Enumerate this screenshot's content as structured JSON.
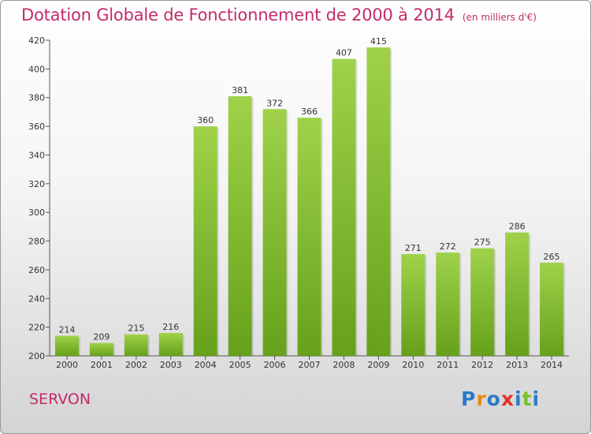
{
  "page": {
    "title": "Dotation Globale de Fonctionnement de 2000 à 2014",
    "subtitle": "(en milliers d'€)",
    "town": "SERVON",
    "logo": [
      "P",
      "r",
      "o",
      "x",
      "i",
      "t",
      "i"
    ],
    "logo_colors": [
      "#2b7bc6",
      "#e98a15",
      "#2b7bc6",
      "#e2312b",
      "#2b7bc6",
      "#7cbf2b",
      "#2b7bc6"
    ]
  },
  "chart_data": {
    "type": "bar",
    "title": "Dotation Globale de Fonctionnement de 2000 à 2014",
    "subtitle": "(en milliers d'€)",
    "xlabel": "",
    "ylabel": "",
    "categories": [
      "2000",
      "2001",
      "2002",
      "2003",
      "2004",
      "2005",
      "2006",
      "2007",
      "2008",
      "2009",
      "2010",
      "2011",
      "2012",
      "2013",
      "2014"
    ],
    "values": [
      214,
      209,
      215,
      216,
      360,
      381,
      372,
      366,
      407,
      415,
      271,
      272,
      275,
      286,
      265
    ],
    "ylim": [
      200,
      420
    ],
    "yticks": [
      200,
      220,
      240,
      260,
      280,
      300,
      320,
      340,
      360,
      380,
      400,
      420
    ],
    "grid": false,
    "bar_color_top": "#9fd24a",
    "bar_color_bottom": "#66a11b"
  }
}
